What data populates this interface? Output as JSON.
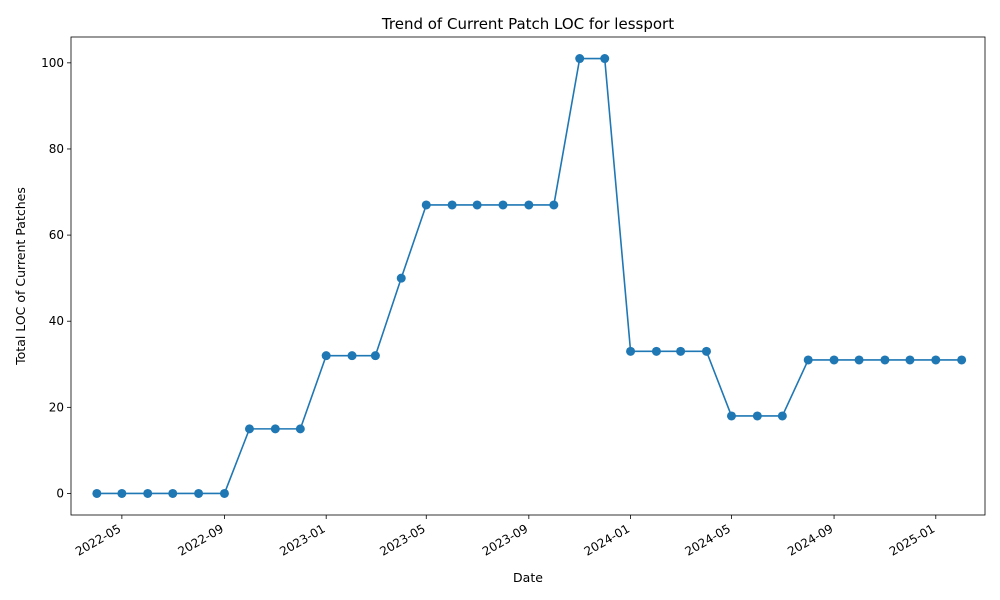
{
  "chart_data": {
    "type": "line",
    "title": "Trend of Current Patch LOC for lessport",
    "xlabel": "Date",
    "ylabel": "Total LOC of Current Patches",
    "color": "#1f77b4",
    "marker": "circle",
    "grid": false,
    "legend": false,
    "xlim": [
      "2022-03-01",
      "2025-03-01"
    ],
    "ylim": [
      -5,
      106
    ],
    "x_ticks": [
      "2022-05",
      "2022-09",
      "2023-01",
      "2023-05",
      "2023-09",
      "2024-01",
      "2024-05",
      "2024-09",
      "2025-01"
    ],
    "y_ticks": [
      0,
      20,
      40,
      60,
      80,
      100
    ],
    "series": [
      {
        "x": [
          "2022-04-01",
          "2022-05-01",
          "2022-06-01",
          "2022-07-01",
          "2022-08-01",
          "2022-09-01",
          "2022-10-01",
          "2022-11-01",
          "2022-12-01",
          "2023-01-01",
          "2023-02-01",
          "2023-03-01",
          "2023-04-01",
          "2023-05-01",
          "2023-06-01",
          "2023-07-01",
          "2023-08-01",
          "2023-09-01",
          "2023-10-01",
          "2023-11-01",
          "2023-12-01",
          "2024-01-01",
          "2024-02-01",
          "2024-03-01",
          "2024-04-01",
          "2024-05-01",
          "2024-06-01",
          "2024-07-01",
          "2024-08-01",
          "2024-09-01",
          "2024-10-01",
          "2024-11-01",
          "2024-12-01",
          "2025-01-01",
          "2025-02-01"
        ],
        "values": [
          0,
          0,
          0,
          0,
          0,
          0,
          15,
          15,
          15,
          32,
          32,
          32,
          50,
          67,
          67,
          67,
          67,
          67,
          67,
          101,
          101,
          33,
          33,
          33,
          33,
          18,
          18,
          18,
          31,
          31,
          31,
          31,
          31,
          31,
          31
        ]
      }
    ]
  }
}
